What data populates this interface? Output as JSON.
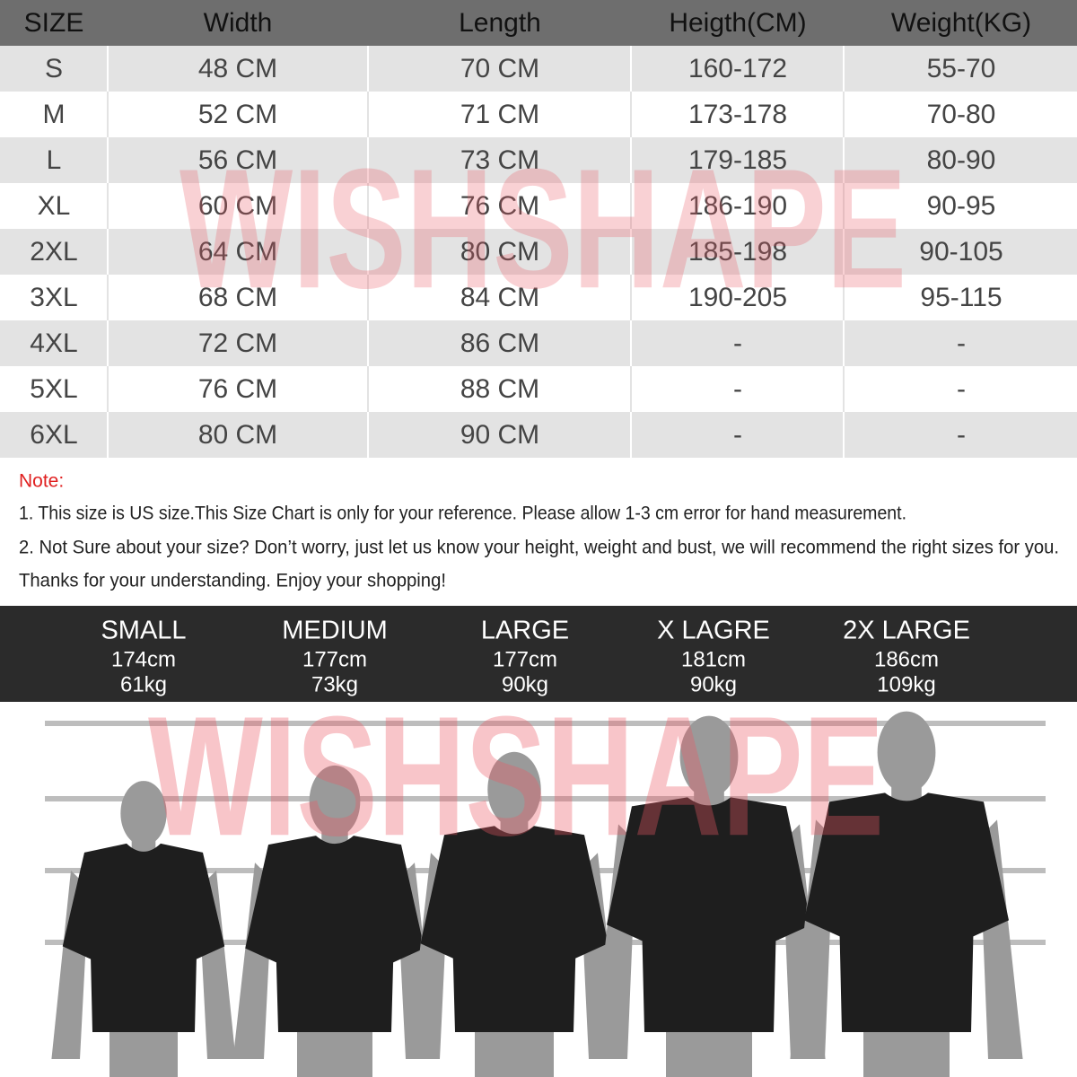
{
  "table": {
    "header": [
      "SIZE",
      "Width",
      "Length",
      "Heigth(CM)",
      "Weight(KG)"
    ],
    "rows": [
      [
        "S",
        "48 CM",
        "70 CM",
        "160-172",
        "55-70"
      ],
      [
        "M",
        "52 CM",
        "71 CM",
        "173-178",
        "70-80"
      ],
      [
        "L",
        "56 CM",
        "73 CM",
        "179-185",
        "80-90"
      ],
      [
        "XL",
        "60 CM",
        "76 CM",
        "186-190",
        "90-95"
      ],
      [
        "2XL",
        "64 CM",
        "80 CM",
        "185-198",
        "90-105"
      ],
      [
        "3XL",
        "68 CM",
        "84 CM",
        "190-205",
        "95-115"
      ],
      [
        "4XL",
        "72 CM",
        "86 CM",
        "-",
        "-"
      ],
      [
        "5XL",
        "76 CM",
        "88 CM",
        "-",
        "-"
      ],
      [
        "6XL",
        "80 CM",
        "90 CM",
        "-",
        "-"
      ]
    ]
  },
  "note": {
    "title": "Note:",
    "lines": [
      "1. This size is US size.This Size Chart is only for your reference. Please allow 1-3 cm error for hand measurement.",
      "2. Not Sure about your size? Don’t worry, just let us know your height, weight and bust, we will recommend the right sizes for you.",
      "Thanks for your understanding. Enjoy your shopping!"
    ]
  },
  "models": [
    {
      "size": "SMALL",
      "height": "174cm",
      "weight": "61kg"
    },
    {
      "size": "MEDIUM",
      "height": "177cm",
      "weight": "73kg"
    },
    {
      "size": "LARGE",
      "height": "177cm",
      "weight": "90kg"
    },
    {
      "size": "X LAGRE",
      "height": "181cm",
      "weight": "90kg"
    },
    {
      "size": "2X LARGE",
      "height": "186cm",
      "weight": "109kg"
    }
  ],
  "watermark": "WISHSHAPE"
}
